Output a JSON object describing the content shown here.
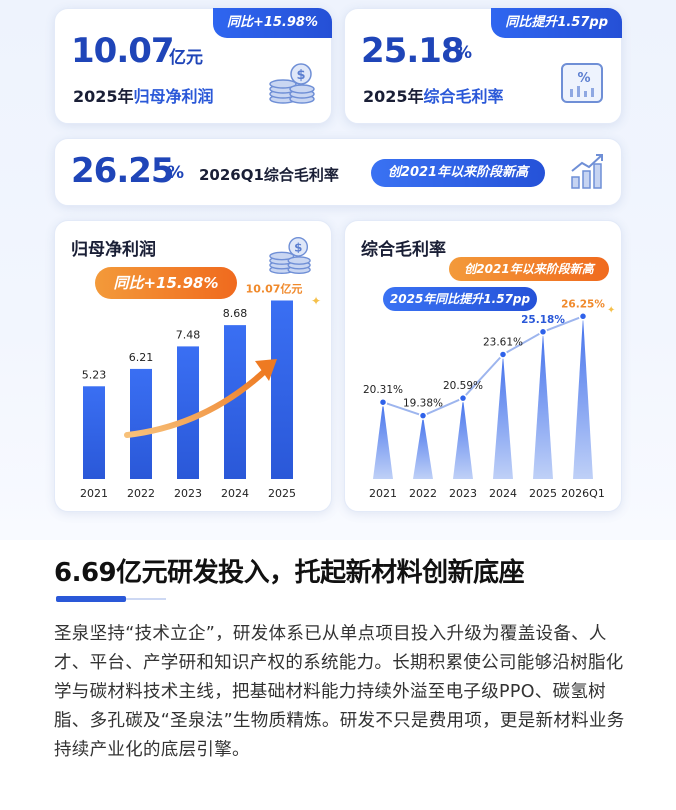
{
  "kpi1": {
    "value": "10.07",
    "unit": "亿元",
    "label_prefix": "2025年",
    "label_highlight": "归母净利润",
    "badge": "同比+15.98%",
    "icon": "coins-icon"
  },
  "kpi2": {
    "value": "25.18",
    "unit": "%",
    "label_prefix": "2025年",
    "label_highlight": "综合毛利率",
    "badge": "同比提升1.57pp",
    "icon": "percent-chart-icon"
  },
  "kpi3": {
    "value": "26.25",
    "unit": "%",
    "label": "2026Q1综合毛利率",
    "pill": "创2021年以来阶段新高",
    "icon": "rising-bar-chart-icon"
  },
  "chart_data": [
    {
      "type": "bar",
      "title": "归母净利润",
      "categories": [
        "2021",
        "2022",
        "2023",
        "2024",
        "2025"
      ],
      "values": [
        5.23,
        6.21,
        7.48,
        8.68,
        10.07
      ],
      "value_labels": [
        "5.23",
        "6.21",
        "7.48",
        "8.68",
        "10.07亿元"
      ],
      "annotation": "同比+15.98%",
      "colors": {
        "bar": "#2f62ea",
        "highlight": "#f08a2c"
      }
    },
    {
      "type": "line",
      "title": "综合毛利率",
      "categories": [
        "2021",
        "2022",
        "2023",
        "2024",
        "2025",
        "2026Q1"
      ],
      "values": [
        20.31,
        19.38,
        20.59,
        23.61,
        25.18,
        26.25
      ],
      "value_labels": [
        "20.31%",
        "19.38%",
        "20.59%",
        "23.61%",
        "25.18%",
        "26.25%"
      ],
      "annotations": [
        "创2021年以来阶段新高",
        "2025年同比提升1.57pp"
      ],
      "colors": {
        "line": "#9db5ee",
        "fill": "#3a6ff0",
        "highlight": "#f08a2c"
      }
    }
  ],
  "section": {
    "title": "6.69亿元研发投入，托起新材料创新底座",
    "paragraph": "圣泉坚持“技术立企”，研发体系已从单点项目投入升级为覆盖设备、人才、平台、产学研和知识产权的系统能力。长期积累使公司能够沿树脂化学与碳材料技术主线，把基础材料能力持续外溢至电子级PPO、碳氢树脂、多孔碳及“圣泉法”生物质精炼。研发不只是费用项，更是新材料业务持续产业化的底层引擎。"
  }
}
